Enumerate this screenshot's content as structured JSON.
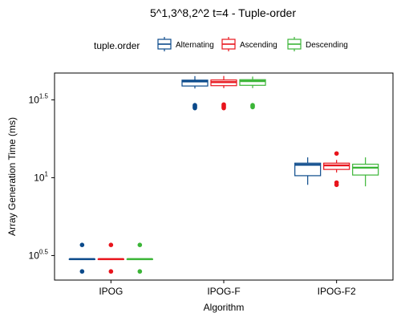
{
  "chart_data": {
    "type": "boxplot",
    "title": "5^1,3^8,2^2 t=4 - Tuple-order",
    "xlabel": "Algorithm",
    "ylabel": "Array Generation Time (ms)",
    "y_scale": "log10",
    "ylim": [
      2.2,
      47
    ],
    "y_ticks": [
      {
        "value": 3.162,
        "base": "10",
        "exp": "0.5"
      },
      {
        "value": 10,
        "base": "10",
        "exp": "1"
      },
      {
        "value": 31.62,
        "base": "10",
        "exp": "1.5"
      }
    ],
    "categories": [
      "IPOG",
      "IPOG-F",
      "IPOG-F2"
    ],
    "legend": {
      "title": "tuple.order",
      "position": "top"
    },
    "series": [
      {
        "name": "Alternating",
        "color": "#0B4A8B",
        "boxes": [
          {
            "whisker_low": 3.0,
            "q1": 3.0,
            "median": 3.0,
            "q3": 3.0,
            "whisker_high": 3.0,
            "outliers": [
              2.5,
              3.7
            ]
          },
          {
            "whisker_low": 37.4,
            "q1": 38.8,
            "median": 41.5,
            "q3": 42.3,
            "whisker_high": 44.9,
            "outliers": [
              28.0,
              28.4,
              28.8,
              29.2
            ]
          },
          {
            "whisker_low": 9.0,
            "q1": 10.3,
            "median": 12.1,
            "q3": 12.4,
            "whisker_high": 13.5,
            "outliers": []
          }
        ]
      },
      {
        "name": "Ascending",
        "color": "#E8141C",
        "boxes": [
          {
            "whisker_low": 3.0,
            "q1": 3.0,
            "median": 3.0,
            "q3": 3.0,
            "whisker_high": 3.0,
            "outliers": [
              2.5,
              3.7
            ]
          },
          {
            "whisker_low": 37.6,
            "q1": 39.0,
            "median": 41.1,
            "q3": 42.4,
            "whisker_high": 45.0,
            "outliers": [
              28.0,
              28.5,
              29.0,
              29.5
            ]
          },
          {
            "whisker_low": 10.8,
            "q1": 11.3,
            "median": 12.0,
            "q3": 12.4,
            "whisker_high": 13.0,
            "outliers": [
              9.0,
              9.3,
              14.3
            ]
          }
        ]
      },
      {
        "name": "Descending",
        "color": "#3BB537",
        "boxes": [
          {
            "whisker_low": 3.0,
            "q1": 3.0,
            "median": 3.0,
            "q3": 3.0,
            "whisker_high": 3.0,
            "outliers": [
              2.5,
              3.7
            ]
          },
          {
            "whisker_low": 37.6,
            "q1": 39.2,
            "median": 41.7,
            "q3": 42.6,
            "whisker_high": 44.6,
            "outliers": [
              28.4,
              28.8,
              29.2
            ]
          },
          {
            "whisker_low": 8.8,
            "q1": 10.4,
            "median": 11.6,
            "q3": 12.2,
            "whisker_high": 13.5,
            "outliers": []
          }
        ]
      }
    ]
  }
}
